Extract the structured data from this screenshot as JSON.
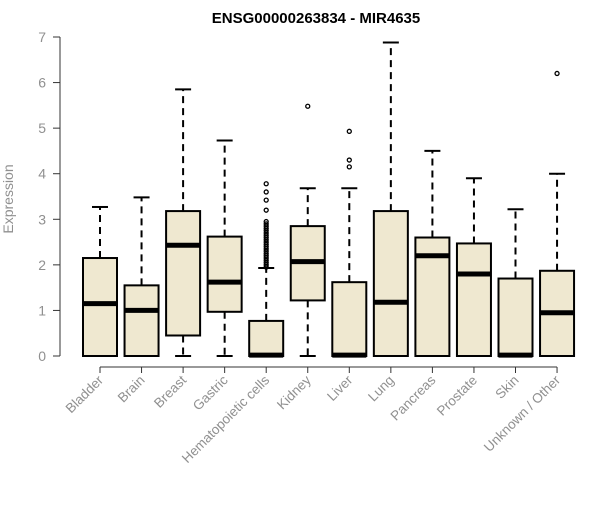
{
  "chart_data": {
    "type": "boxplot",
    "title": "ENSG00000263834 - MIR4635",
    "ylabel": "Expression",
    "xlabel": "",
    "ylim": [
      0,
      7
    ],
    "yticks": [
      0,
      1,
      2,
      3,
      4,
      5,
      6,
      7
    ],
    "grid": false,
    "colors": {
      "box_fill": "#efe8d0",
      "stroke": "#000000",
      "label": "#909090"
    },
    "categories": [
      "Bladder",
      "Brain",
      "Breast",
      "Gastric",
      "Hematopoietic cells",
      "Kidney",
      "Liver",
      "Lung",
      "Pancreas",
      "Prostate",
      "Skin",
      "Unknown / Other"
    ],
    "boxes": [
      {
        "min": 0,
        "q1": 0,
        "median": 1.15,
        "q3": 2.15,
        "max": 3.27,
        "outliers": []
      },
      {
        "min": 0,
        "q1": 0,
        "median": 1.0,
        "q3": 1.55,
        "max": 3.48,
        "outliers": []
      },
      {
        "min": 0,
        "q1": 0.45,
        "median": 2.43,
        "q3": 3.18,
        "max": 5.85,
        "outliers": []
      },
      {
        "min": 0,
        "q1": 0.97,
        "median": 1.62,
        "q3": 2.62,
        "max": 4.73,
        "outliers": []
      },
      {
        "min": 0,
        "q1": 0,
        "median": 0.02,
        "q3": 0.77,
        "max": 1.93,
        "outliers": [
          3.78,
          3.6,
          3.42,
          3.2,
          2.95,
          2.9,
          2.85,
          2.8,
          2.75,
          2.7,
          2.65,
          2.6,
          2.55,
          2.5,
          2.45,
          2.4,
          2.35,
          2.3,
          2.25,
          2.2,
          2.15,
          2.1,
          2.05,
          2.0,
          1.95
        ]
      },
      {
        "min": 0,
        "q1": 1.22,
        "median": 2.07,
        "q3": 2.85,
        "max": 3.68,
        "outliers": [
          5.48
        ]
      },
      {
        "min": 0,
        "q1": 0,
        "median": 0.02,
        "q3": 1.62,
        "max": 3.68,
        "outliers": [
          4.93,
          4.3,
          4.15
        ]
      },
      {
        "min": 0,
        "q1": 0,
        "median": 1.18,
        "q3": 3.18,
        "max": 6.88,
        "outliers": []
      },
      {
        "min": 0,
        "q1": 0,
        "median": 2.2,
        "q3": 2.6,
        "max": 4.5,
        "outliers": []
      },
      {
        "min": 0,
        "q1": 0,
        "median": 1.8,
        "q3": 2.47,
        "max": 3.9,
        "outliers": []
      },
      {
        "min": 0,
        "q1": 0,
        "median": 0.02,
        "q3": 1.7,
        "max": 3.22,
        "outliers": []
      },
      {
        "min": 0,
        "q1": 0,
        "median": 0.95,
        "q3": 1.87,
        "max": 4.0,
        "outliers": [
          6.2
        ]
      }
    ]
  }
}
